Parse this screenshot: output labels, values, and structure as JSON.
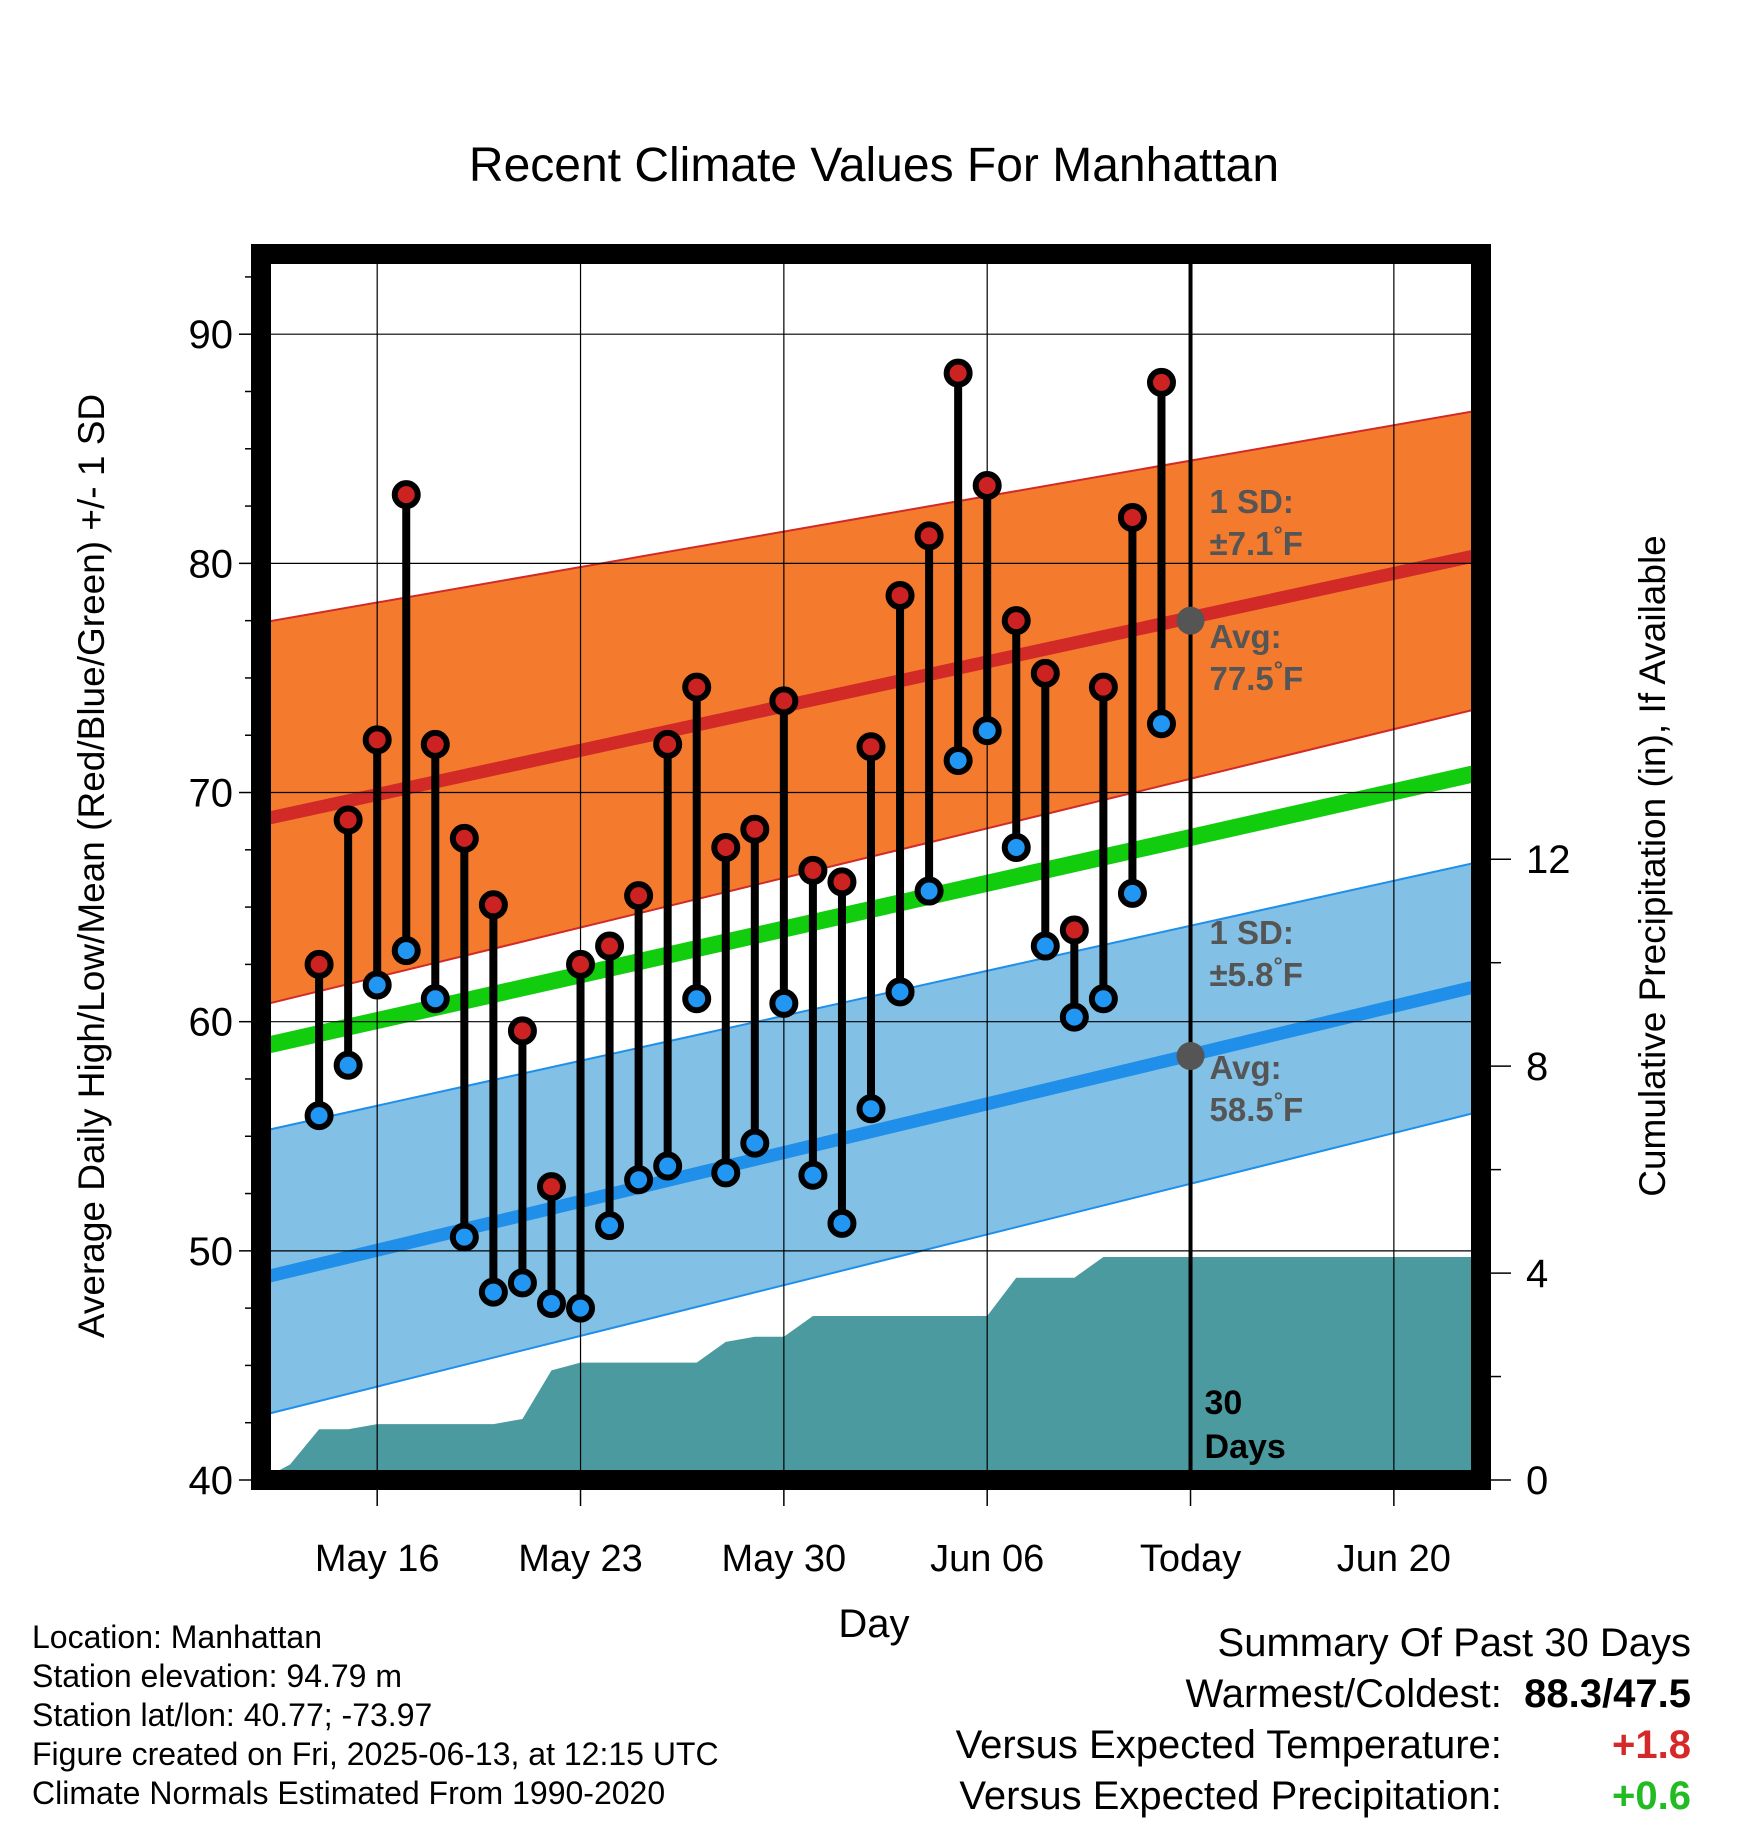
{
  "chart_data": {
    "type": "line",
    "title": "Recent Climate Values For Manhattan",
    "xlabel": "Day",
    "ylabel": "Average Daily High/Low/Mean (Red/Blue/Green) +/- 1 SD",
    "y2label": "Cumulative Precipitation (in), If Available",
    "ylim": [
      40,
      93.5
    ],
    "y2lim": [
      0,
      23.7
    ],
    "yticks": [
      "40",
      "50",
      "60",
      "70",
      "80",
      "90"
    ],
    "y2ticks": [
      "0",
      "4",
      "8",
      "12"
    ],
    "x_range": [
      "2025-05-12",
      "2025-06-23"
    ],
    "x_ticks": [
      {
        "date": "2025-05-16",
        "label": "May 16"
      },
      {
        "date": "2025-05-23",
        "label": "May 23"
      },
      {
        "date": "2025-05-30",
        "label": "May 30"
      },
      {
        "date": "2025-06-06",
        "label": "Jun 06"
      },
      {
        "date": "2025-06-13",
        "label": "Today"
      },
      {
        "date": "2025-06-20",
        "label": "Jun 20"
      }
    ],
    "grid": true,
    "today": "2025-06-13",
    "today_label": [
      "30",
      "Days"
    ],
    "normals": {
      "dates": [
        "2025-05-12",
        "2025-06-23"
      ],
      "high_avg": [
        68.8,
        80.4
      ],
      "high_sd_upper": [
        77.4,
        86.7
      ],
      "high_sd_lower": [
        60.7,
        73.7
      ],
      "low_avg": [
        48.8,
        61.6
      ],
      "low_sd_upper": [
        55.2,
        67.0
      ],
      "low_sd_lower": [
        42.8,
        56.1
      ],
      "mean_avg": [
        58.9,
        70.9
      ]
    },
    "annotations": {
      "high_sd": [
        "1 SD:",
        "±7.1°F"
      ],
      "high_avg": [
        "Avg:",
        "77.5°F"
      ],
      "high_avg_value": 77.5,
      "low_sd": [
        "1 SD:",
        "±5.8°F"
      ],
      "low_avg": [
        "Avg:",
        "58.5°F"
      ],
      "low_avg_value": 58.5
    },
    "series": [
      {
        "name": "High",
        "dates": [
          "2025-05-14",
          "2025-05-15",
          "2025-05-16",
          "2025-05-17",
          "2025-05-18",
          "2025-05-19",
          "2025-05-20",
          "2025-05-21",
          "2025-05-22",
          "2025-05-23",
          "2025-05-24",
          "2025-05-25",
          "2025-05-26",
          "2025-05-27",
          "2025-05-28",
          "2025-05-29",
          "2025-05-30",
          "2025-05-31",
          "2025-06-01",
          "2025-06-02",
          "2025-06-03",
          "2025-06-04",
          "2025-06-05",
          "2025-06-06",
          "2025-06-07",
          "2025-06-08",
          "2025-06-09",
          "2025-06-10",
          "2025-06-11",
          "2025-06-12"
        ],
        "values": [
          62.5,
          68.8,
          72.3,
          83.0,
          72.1,
          68.0,
          65.1,
          59.6,
          52.8,
          62.5,
          63.3,
          65.5,
          72.1,
          74.6,
          67.6,
          68.4,
          74.0,
          66.6,
          66.1,
          72.0,
          78.6,
          81.2,
          88.3,
          83.4,
          77.5,
          75.2,
          64.0,
          74.6,
          82.0,
          87.9
        ]
      },
      {
        "name": "Low",
        "dates": [
          "2025-05-14",
          "2025-05-15",
          "2025-05-16",
          "2025-05-17",
          "2025-05-18",
          "2025-05-19",
          "2025-05-20",
          "2025-05-21",
          "2025-05-22",
          "2025-05-23",
          "2025-05-24",
          "2025-05-25",
          "2025-05-26",
          "2025-05-27",
          "2025-05-28",
          "2025-05-29",
          "2025-05-30",
          "2025-05-31",
          "2025-06-01",
          "2025-06-02",
          "2025-06-03",
          "2025-06-04",
          "2025-06-05",
          "2025-06-06",
          "2025-06-07",
          "2025-06-08",
          "2025-06-09",
          "2025-06-10",
          "2025-06-11",
          "2025-06-12"
        ],
        "values": [
          55.9,
          58.1,
          61.6,
          63.1,
          61.0,
          50.6,
          48.2,
          48.6,
          47.7,
          47.5,
          51.1,
          53.1,
          53.7,
          61.0,
          53.4,
          54.7,
          60.8,
          53.3,
          51.2,
          56.2,
          61.3,
          65.7,
          71.4,
          72.7,
          67.6,
          63.3,
          60.2,
          61.0,
          65.6,
          73.0
        ]
      }
    ],
    "precipitation": {
      "dates": [
        "2025-05-12",
        "2025-05-13",
        "2025-05-14",
        "2025-05-15",
        "2025-05-16",
        "2025-05-17",
        "2025-05-18",
        "2025-05-19",
        "2025-05-20",
        "2025-05-21",
        "2025-05-22",
        "2025-05-23",
        "2025-05-24",
        "2025-05-25",
        "2025-05-26",
        "2025-05-27",
        "2025-05-28",
        "2025-05-29",
        "2025-05-30",
        "2025-05-31",
        "2025-06-01",
        "2025-06-02",
        "2025-06-03",
        "2025-06-04",
        "2025-06-05",
        "2025-06-06",
        "2025-06-07",
        "2025-06-08",
        "2025-06-09",
        "2025-06-10",
        "2025-06-11",
        "2025-06-12",
        "2025-06-13",
        "2025-06-23"
      ],
      "values": [
        0.0,
        0.3,
        0.98,
        0.98,
        1.08,
        1.08,
        1.08,
        1.08,
        1.08,
        1.18,
        2.12,
        2.27,
        2.27,
        2.27,
        2.27,
        2.27,
        2.67,
        2.77,
        2.77,
        3.17,
        3.17,
        3.17,
        3.17,
        3.17,
        3.17,
        3.17,
        3.91,
        3.91,
        3.91,
        4.31,
        4.31,
        4.31,
        4.31,
        4.31
      ]
    }
  },
  "info": {
    "location": "Location: Manhattan",
    "elevation": "Station elevation: 94.79 m",
    "latlon": "Station lat/lon: 40.77; -73.97",
    "created": "Figure created on Fri, 2025-06-13, at 12:15 UTC",
    "normals": "Climate Normals Estimated From 1990-2020"
  },
  "summary": {
    "title": "Summary Of Past 30 Days",
    "warmest_label": "Warmest/Coldest:",
    "warmest_value": "88.3/47.5",
    "temp_label": "Versus Expected Temperature:",
    "temp_value": "+1.8",
    "precip_label": "Versus Expected Precipitation:",
    "precip_value": "+0.6"
  },
  "colors": {
    "high_band": "#f47a2e",
    "high_line": "#d22a26",
    "low_band": "#82c0e5",
    "low_line": "#1f8fea",
    "mean_line": "#12cc0e",
    "precip": "#4a9aa0",
    "high_dot": "#cc2222",
    "low_dot": "#2196f3",
    "annotation": "#555555",
    "warm": "#d62828",
    "wet": "#22bb22"
  }
}
